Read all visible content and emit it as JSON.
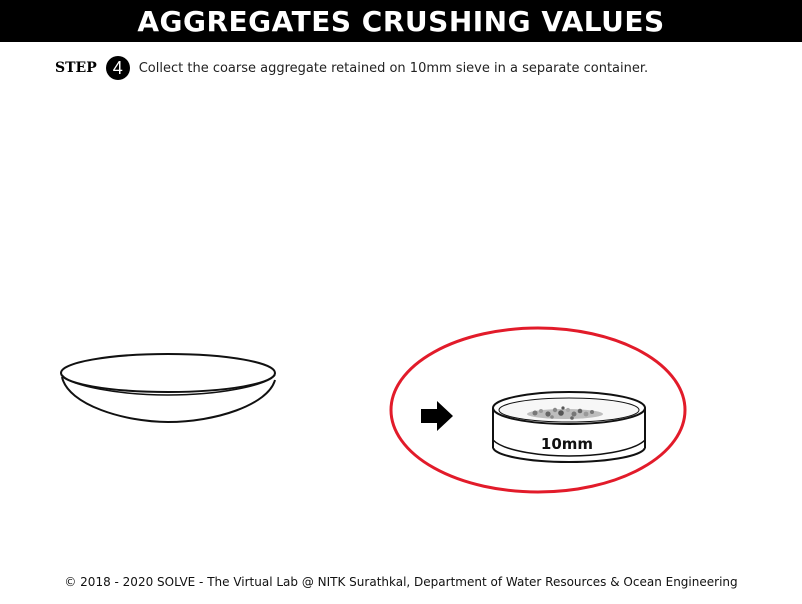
{
  "header": {
    "title": "AGGREGATES CRUSHING VALUES"
  },
  "step": {
    "label": "STEP",
    "number": "4",
    "instruction": "Collect the coarse aggregate retained on 10mm sieve in a separate container."
  },
  "sieve": {
    "label": "10mm"
  },
  "highlight_color": "#e21b2a",
  "footer": {
    "text": "© 2018 - 2020 SOLVE - The Virtual Lab @ NITK Surathkal, Department of Water Resources & Ocean Engineering"
  }
}
